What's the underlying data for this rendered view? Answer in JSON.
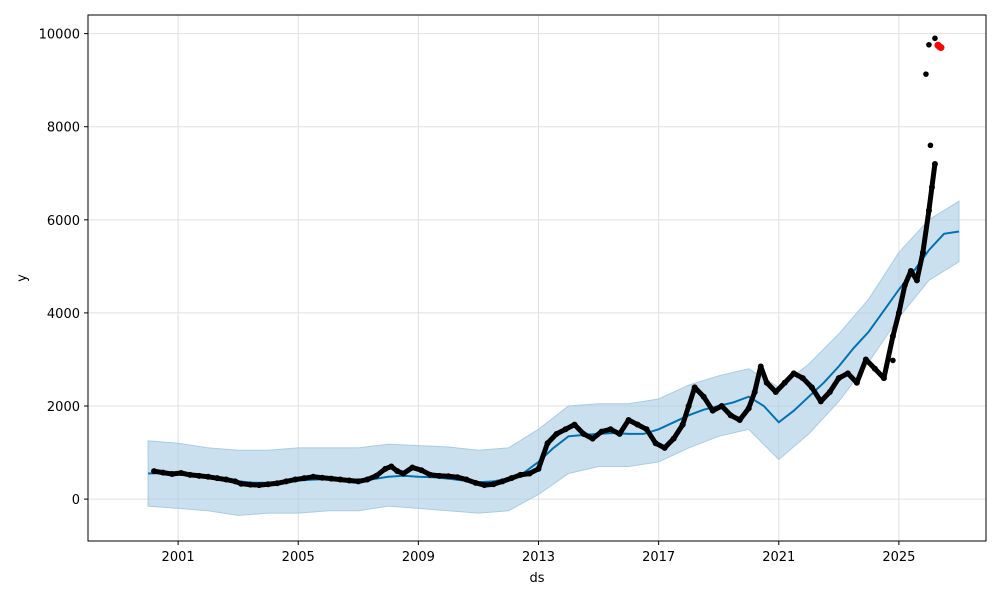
{
  "chart_data": {
    "type": "line",
    "title": "",
    "xlabel": "ds",
    "ylabel": "y",
    "x_range": [
      1998.0,
      2027.9
    ],
    "ylim": [
      -900,
      10400
    ],
    "x_ticks": [
      2001,
      2005,
      2009,
      2013,
      2017,
      2021,
      2025
    ],
    "x_tick_labels": [
      "2001",
      "2005",
      "2009",
      "2013",
      "2017",
      "2021",
      "2025"
    ],
    "y_ticks": [
      0,
      2000,
      4000,
      6000,
      8000,
      10000
    ],
    "y_tick_labels": [
      "0",
      "2000",
      "4000",
      "6000",
      "8000",
      "10000"
    ],
    "grid": true,
    "colors": {
      "observed": "#000000",
      "forecast": "#0072B2",
      "interval": "#a9cce3",
      "highlight": "#ff0000"
    },
    "series": [
      {
        "role": "observed",
        "mark": "scatter",
        "x": [
          2000.2,
          2000.5,
          2000.8,
          2001.1,
          2001.4,
          2001.7,
          2002.0,
          2002.3,
          2002.6,
          2002.9,
          2003.1,
          2003.4,
          2003.7,
          2004.0,
          2004.3,
          2004.6,
          2004.9,
          2005.2,
          2005.5,
          2005.8,
          2006.1,
          2006.4,
          2006.7,
          2007.0,
          2007.3,
          2007.6,
          2007.9,
          2008.1,
          2008.3,
          2008.5,
          2008.8,
          2009.1,
          2009.4,
          2009.7,
          2010.0,
          2010.3,
          2010.6,
          2010.9,
          2011.2,
          2011.5,
          2011.8,
          2012.1,
          2012.4,
          2012.7,
          2013.0,
          2013.3,
          2013.6,
          2013.9,
          2014.2,
          2014.5,
          2014.8,
          2015.1,
          2015.4,
          2015.7,
          2016.0,
          2016.3,
          2016.6,
          2016.9,
          2017.2,
          2017.5,
          2017.8,
          2018.0,
          2018.2,
          2018.5,
          2018.8,
          2019.1,
          2019.4,
          2019.7,
          2020.0,
          2020.2,
          2020.4,
          2020.6,
          2020.9,
          2021.2,
          2021.5,
          2021.8,
          2022.1,
          2022.4,
          2022.7,
          2023.0,
          2023.3,
          2023.6,
          2023.9,
          2024.2,
          2024.5,
          2024.8,
          2025.0,
          2025.2,
          2025.4,
          2025.6,
          2025.8,
          2026.0,
          2026.1,
          2026.2
        ],
        "y": [
          600,
          570,
          540,
          560,
          520,
          500,
          480,
          450,
          420,
          380,
          330,
          310,
          300,
          320,
          340,
          380,
          420,
          450,
          480,
          460,
          440,
          420,
          400,
          380,
          420,
          500,
          650,
          700,
          600,
          550,
          680,
          620,
          520,
          500,
          490,
          470,
          420,
          350,
          300,
          320,
          380,
          450,
          520,
          550,
          650,
          1200,
          1400,
          1500,
          1600,
          1400,
          1300,
          1450,
          1500,
          1400,
          1700,
          1600,
          1500,
          1200,
          1100,
          1300,
          1600,
          2000,
          2400,
          2200,
          1900,
          2000,
          1800,
          1700,
          1950,
          2300,
          2850,
          2500,
          2300,
          2500,
          2700,
          2600,
          2400,
          2100,
          2300,
          2600,
          2700,
          2500,
          3000,
          2800,
          2600,
          3500,
          4000,
          4600,
          4900,
          4700,
          5300,
          6200,
          6700,
          7200
        ]
      },
      {
        "role": "highlighted_points",
        "mark": "scatter",
        "x": [
          2026.3,
          2026.35,
          2026.4
        ],
        "y": [
          9750,
          9720,
          9700
        ]
      },
      {
        "role": "outliers",
        "mark": "scatter",
        "x": [
          2025.9,
          2026.0,
          2026.05,
          2026.2,
          2024.8
        ],
        "y": [
          9130,
          9760,
          7600,
          9900,
          2980
        ]
      },
      {
        "role": "forecast",
        "mark": "line",
        "x": [
          2000.0,
          2000.5,
          2001.0,
          2001.5,
          2002.0,
          2002.5,
          2003.0,
          2003.5,
          2004.0,
          2004.5,
          2005.0,
          2005.5,
          2006.0,
          2006.5,
          2007.0,
          2007.5,
          2008.0,
          2008.5,
          2009.0,
          2009.5,
          2010.0,
          2010.5,
          2011.0,
          2011.5,
          2012.0,
          2012.5,
          2013.0,
          2013.5,
          2014.0,
          2014.5,
          2015.0,
          2015.5,
          2016.0,
          2016.5,
          2017.0,
          2017.5,
          2018.0,
          2018.5,
          2019.0,
          2019.5,
          2020.0,
          2020.5,
          2021.0,
          2021.5,
          2022.0,
          2022.5,
          2023.0,
          2023.5,
          2024.0,
          2024.5,
          2025.0,
          2025.5,
          2026.0,
          2026.5,
          2027.0
        ],
        "y": [
          550,
          560,
          560,
          520,
          480,
          430,
          380,
          350,
          350,
          360,
          400,
          420,
          430,
          430,
          420,
          430,
          480,
          500,
          480,
          470,
          440,
          400,
          360,
          380,
          440,
          560,
          800,
          1100,
          1350,
          1380,
          1400,
          1420,
          1400,
          1400,
          1500,
          1650,
          1800,
          1920,
          2000,
          2080,
          2200,
          2000,
          1650,
          1900,
          2200,
          2500,
          2850,
          3250,
          3600,
          4050,
          4500,
          4900,
          5350,
          5700,
          5750
        ]
      },
      {
        "role": "interval_upper",
        "mark": "area",
        "x": [
          2000.0,
          2001.0,
          2002.0,
          2003.0,
          2004.0,
          2005.0,
          2006.0,
          2007.0,
          2008.0,
          2009.0,
          2010.0,
          2011.0,
          2012.0,
          2013.0,
          2014.0,
          2015.0,
          2016.0,
          2017.0,
          2018.0,
          2019.0,
          2020.0,
          2021.0,
          2022.0,
          2023.0,
          2024.0,
          2025.0,
          2026.0,
          2027.0
        ],
        "y": [
          1250,
          1200,
          1100,
          1050,
          1050,
          1100,
          1100,
          1100,
          1180,
          1150,
          1120,
          1050,
          1100,
          1500,
          2000,
          2050,
          2050,
          2150,
          2450,
          2650,
          2800,
          2400,
          2900,
          3550,
          4300,
          5300,
          6000,
          6400
        ]
      },
      {
        "role": "interval_lower",
        "mark": "area",
        "x": [
          2000.0,
          2001.0,
          2002.0,
          2003.0,
          2004.0,
          2005.0,
          2006.0,
          2007.0,
          2008.0,
          2009.0,
          2010.0,
          2011.0,
          2012.0,
          2013.0,
          2014.0,
          2015.0,
          2016.0,
          2017.0,
          2018.0,
          2019.0,
          2020.0,
          2021.0,
          2022.0,
          2023.0,
          2024.0,
          2025.0,
          2026.0,
          2027.0
        ],
        "y": [
          -150,
          -200,
          -250,
          -350,
          -300,
          -300,
          -250,
          -250,
          -150,
          -200,
          -250,
          -300,
          -250,
          100,
          550,
          700,
          700,
          800,
          1100,
          1350,
          1500,
          850,
          1400,
          2100,
          2950,
          3900,
          4700,
          5100
        ]
      }
    ]
  }
}
